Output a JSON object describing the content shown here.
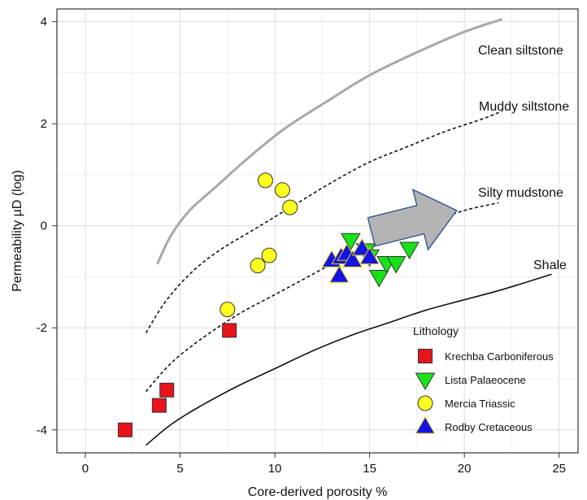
{
  "chart_data": {
    "type": "scatter",
    "xlabel": "Core-derived porosity %",
    "ylabel": "Permeability µD (log)",
    "xlim": [
      -1.5,
      26
    ],
    "ylim": [
      -4.45,
      4.25
    ],
    "xticks": [
      0,
      5,
      10,
      15,
      20,
      25
    ],
    "yticks": [
      -4,
      -2,
      0,
      2,
      4
    ],
    "grid": true,
    "legend": {
      "title": "Lithology",
      "placement": "bottom-right"
    },
    "curves": [
      {
        "name": "Clean siltstone",
        "style": "solid",
        "color": "#a8a8a8",
        "x": [
          3.8,
          4.5,
          5.5,
          7,
          8.5,
          10.5,
          12.8,
          15,
          17.5,
          20,
          22
        ],
        "y": [
          -0.75,
          -0.2,
          0.3,
          0.8,
          1.3,
          1.9,
          2.45,
          2.95,
          3.4,
          3.8,
          4.05
        ]
      },
      {
        "name": "Muddy siltstone",
        "style": "dashed",
        "color": "#111111",
        "x": [
          3.2,
          4.2,
          5.5,
          7,
          9,
          11,
          13,
          15,
          17,
          19,
          21,
          22
        ],
        "y": [
          -2.1,
          -1.5,
          -0.95,
          -0.5,
          -0.05,
          0.4,
          0.85,
          1.25,
          1.55,
          1.85,
          2.1,
          2.25
        ]
      },
      {
        "name": "Silty mudstone",
        "style": "dashed",
        "color": "#111111",
        "x": [
          3.2,
          4.5,
          6,
          8,
          10,
          12,
          14,
          16,
          18,
          20,
          21.8
        ],
        "y": [
          -3.25,
          -2.7,
          -2.25,
          -1.75,
          -1.35,
          -0.95,
          -0.55,
          -0.25,
          0.05,
          0.3,
          0.45
        ]
      },
      {
        "name": "Shale",
        "style": "solid",
        "color": "#111111",
        "x": [
          3.2,
          4.5,
          6,
          8,
          10,
          12,
          14,
          16,
          18,
          20,
          22,
          24.6
        ],
        "y": [
          -4.3,
          -3.9,
          -3.55,
          -3.15,
          -2.8,
          -2.45,
          -2.15,
          -1.9,
          -1.65,
          -1.45,
          -1.25,
          -0.95
        ]
      }
    ],
    "series": [
      {
        "name": "Krechba Carboniferous",
        "marker": "square",
        "color": "#e8141c",
        "x": [
          2.1,
          3.9,
          4.3,
          7.6
        ],
        "y": [
          -4.0,
          -3.52,
          -3.22,
          -2.05
        ]
      },
      {
        "name": "Lista Palaeocene",
        "marker": "triangle-down",
        "color": "#17e317",
        "x": [
          14.0,
          14.8,
          15.0,
          15.5,
          15.9,
          16.4,
          17.1
        ],
        "y": [
          -0.28,
          -0.48,
          -0.6,
          -1.0,
          -0.73,
          -0.73,
          -0.45
        ]
      },
      {
        "name": "Mercia Triassic",
        "marker": "circle",
        "color": "#ffff20",
        "x": [
          9.5,
          10.4,
          10.8,
          9.1,
          9.7,
          7.5
        ],
        "y": [
          0.89,
          0.7,
          0.36,
          -0.78,
          -0.58,
          -1.64
        ]
      },
      {
        "name": "Rodby Cretaceous",
        "marker": "triangle-up",
        "color": "#1414e6",
        "x": [
          13.0,
          13.5,
          13.8,
          14.1,
          14.6,
          15.0,
          13.4
        ],
        "y": [
          -0.68,
          -0.62,
          -0.55,
          -0.68,
          -0.45,
          -0.62,
          -0.98
        ]
      }
    ],
    "arrow": {
      "from": [
        15.1,
        -0.12
      ],
      "to": [
        19.6,
        0.3
      ]
    }
  }
}
